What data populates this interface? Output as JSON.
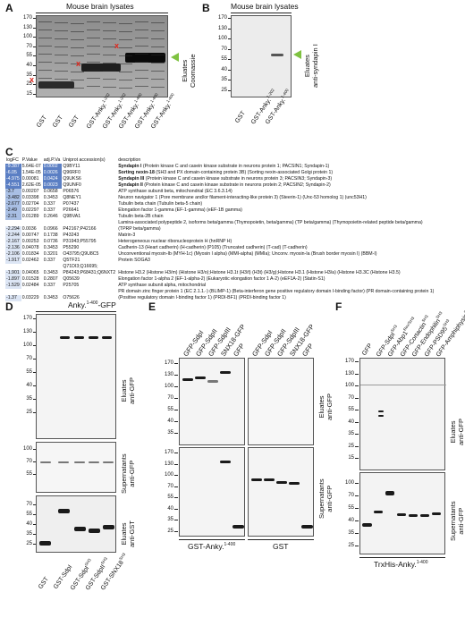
{
  "panels": {
    "A": {
      "letter": "A",
      "header": "Mouse brain lysates",
      "side_label": [
        "Eluates",
        "Coomassie"
      ],
      "mw": [
        "170",
        "130",
        "100",
        "70",
        "55",
        "40",
        "35",
        "25",
        "15"
      ],
      "lanes": [
        "GST",
        "GST",
        "GST",
        "GST-Anky.",
        "GST-Anky.",
        "GST-Anky.",
        "GST-Anky.",
        "GST-Anky."
      ],
      "lane_sups": [
        "",
        "",
        "",
        "1-202",
        "1-202",
        "1-400",
        "1-400",
        "1-400"
      ],
      "marker": "x"
    },
    "B": {
      "letter": "B",
      "header": "Mouse brain lysates",
      "side_label": [
        "Eluates",
        "anti-syndapin I"
      ],
      "mw": [
        "170",
        "130",
        "100",
        "70",
        "55",
        "40",
        "35",
        "25"
      ],
      "lanes": [
        "GST",
        "GST-Anky.",
        "GST-Anky."
      ],
      "lane_sups": [
        "",
        "1-202",
        "1-400"
      ]
    },
    "C": {
      "letter": "C",
      "columns": [
        "logFC",
        "P.Value",
        "adj.P.Va",
        "Uniprot accession(s)",
        "description"
      ],
      "rows": [
        [
          "-9.387",
          "5.64E-07",
          "0.0002",
          "Q9BY11",
          "Syndapin I",
          " (Protein kinase C and casein kinase substrate in neurons protein 1; PACSIN1; Syndapin-1)"
        ],
        [
          "-6.05",
          "1.54E-05",
          "0.0026",
          "Q96RF0",
          "Sorting nexin-18",
          " (SH3 and PX domain-containing protein 3B) (Sorting nexin-associated Golgi protein 1)"
        ],
        [
          "-4.975",
          "0.00081",
          "0.0424",
          "Q9UKS6",
          "Syndapin III",
          " (Protein kinase C and casein kinase substrate in neurons protein 3; PACSIN3; Syndapin-3)"
        ],
        [
          "-4.551",
          "2.62E-05",
          "0.0023",
          "Q9UNF0",
          "Syndapin II",
          " (Protein kinase C and casein kinase substrate in neurons protein 2; PACSIN2; Syndapin-2)"
        ],
        [
          "-3.7",
          "0.00207",
          "0.0658",
          "P06576",
          "",
          "ATP synthase subunit beta, mitochondrial (EC 3.6.3.14)"
        ],
        [
          "-3.482",
          "0.03398",
          "0.3453",
          "Q8NEY1",
          "",
          "Neuron navigator 1 (Pore membrane and/or filament-interacting-like protein 3) (Steerin-1) (Unc-53 homolog 1) (unc53H1)"
        ],
        [
          "-2.677",
          "0.02704",
          "0.337",
          "P07437",
          "",
          "Tubulin beta chain (Tubulin beta-5 chain)"
        ],
        [
          "-2.49",
          "0.02297",
          "0.337",
          "P26641",
          "",
          "Elongation factor 1-gamma (EF-1-gamma) (eEF-1B gamma)"
        ],
        [
          "-2.31",
          "0.01289",
          "0.2646",
          "Q9BVA1",
          "",
          "Tubulin beta-2B chain"
        ],
        [
          "",
          "",
          "",
          "",
          "",
          "Lamina-associated polypeptide 2, isoforms beta/gamma (Thymopoietin, beta/gamma) (TP beta/gamma) (Thymopoietin-related peptide beta/gamma)"
        ],
        [
          "-2.294",
          "0.0036",
          "0.0966",
          "P42167;P42166",
          "",
          "(TPRP beta/gamma)"
        ],
        [
          "-2.244",
          "0.00747",
          "0.1738",
          "P43243",
          "",
          "Matrin-3"
        ],
        [
          "-2.167",
          "0.00253",
          "0.0736",
          "P31943;P55795",
          "",
          "Heterogeneous nuclear ribonucleoprotein H (hnRNP H)"
        ],
        [
          "-2.136",
          "0.04078",
          "0.3453",
          "P55290",
          "",
          "Cadherin-13 (Heart cadherin) (H-cadherin) (P105) (Truncated cadherin) (T-cad) (T-cadherin)"
        ],
        [
          "-2.106",
          "0.01834",
          "0.3201",
          "O43795;Q9U8C5",
          "",
          "Unconventional myosin-Ib (MYH-1c) (Myosin I alpha) (MMI-alpha) (MMIa); Unconv. myosin-Ia (Brush border myosin I) (BBM-I)"
        ],
        [
          "-1.917",
          "0.02462",
          "0.337",
          "Q5TF21",
          "",
          "Protein SOGA3"
        ],
        [
          "",
          "",
          "",
          "Q71DI3;Q16695;",
          "",
          ""
        ],
        [
          "-1.901",
          "0.04065",
          "0.3453",
          "P84243;P68431;Q6NXT2",
          "",
          "Histone H3.2 (Histone H3/m) (Histone H3/o);Histone H3.1t (H3/t) (H3t) (H3/g);Histone H3.1 (Histone H3/a) (Histone H3.3C (Histone H3.5)"
        ],
        [
          "-1.897",
          "0.01528",
          "0.2807",
          "Q05639",
          "",
          "Elongation factor 1-alpha 2 (EF-1-alpha-2) (Eukaryotic elongation factor 1 A-2) (eEF1A-2) (Statin-S1)"
        ],
        [
          "-1.529",
          "0.02484",
          "0.337",
          "P25705",
          "",
          "ATP synthase subunit alpha, mitochondrial"
        ],
        [
          "",
          "",
          "",
          "",
          "",
          "PR domain zinc finger protein 1 (EC 2.1.1.-) (BLIMP-1) (Beta-interferon gene positive regulatory domain I-binding factor) (PR domain-containing protein 1)"
        ],
        [
          "-1.37",
          "0.03229",
          "0.3453",
          "O75626",
          "",
          "(Positive regulatory domain I-binding factor 1) (PRDI-BF1) (PRDI-binding factor 1)"
        ]
      ]
    },
    "D": {
      "letter": "D",
      "header": "Anky.",
      "header_sup": "1-400",
      "header_suffix": "-GFP",
      "mw_top": [
        "170",
        "130",
        "100",
        "70",
        "55",
        "40",
        "35",
        "25"
      ],
      "mw_mid": [
        "100",
        "70",
        "55"
      ],
      "mw_bot": [
        "70",
        "55",
        "40",
        "35",
        "25"
      ],
      "side_top": [
        "Eluates",
        "anti-GFP"
      ],
      "side_mid": [
        "Supernatants",
        "anti-GFP"
      ],
      "side_bot": [
        "Eluates",
        "anti-GST"
      ],
      "lanes": [
        "GST",
        "GST-SdpI",
        "GST-SdpI",
        "GST-SdpII",
        "GST-SNX18"
      ],
      "lane_sups": [
        "",
        "",
        "SH3",
        "SH3",
        "SH3"
      ]
    },
    "E": {
      "letter": "E",
      "lanes": [
        "GFP-SdpI",
        "GFP-SdpII",
        "GFP-SdpIII",
        "SNX18-GFP",
        "GFP",
        "GFP-SdpI",
        "GFP-SdpII",
        "GFP-SdpIII",
        "SNX18-GFP",
        "GFP"
      ],
      "mw_top": [
        "170",
        "130",
        "100",
        "70",
        "55",
        "40",
        "35"
      ],
      "mw_bot": [
        "170",
        "130",
        "100",
        "70",
        "55",
        "40",
        "35",
        "25"
      ],
      "side_top": [
        "Eluates",
        "anti-GFP"
      ],
      "side_bot": [
        "Supernatants",
        "anti-GFP"
      ],
      "bottom_left": "GST-Anky.",
      "bottom_left_sup": "1-400",
      "bottom_right": "GST"
    },
    "F": {
      "letter": "F",
      "lanes": [
        "GFP",
        "GFP-SdpI",
        "GFP-Abp1",
        "GFP-Cortactin",
        "GFP-Endophilin",
        "GFP-PSD95",
        "GFP-Amphiphysin"
      ],
      "lane_sups": [
        "",
        "SH3",
        "Rev/SH3",
        "SH3",
        "SH3",
        "SH3",
        "SH3"
      ],
      "mw_top": [
        "170",
        "130",
        "100",
        "70",
        "55",
        "40",
        "35",
        "25",
        "15"
      ],
      "mw_bot": [
        "100",
        "70",
        "55",
        "40",
        "35",
        "25"
      ],
      "side_top": [
        "Eluates",
        "anti-GFP"
      ],
      "side_bot": [
        "Supernatants",
        "anti-GFP"
      ],
      "bottom": "TrxHis-Anky.",
      "bottom_sup": "1-400"
    }
  }
}
